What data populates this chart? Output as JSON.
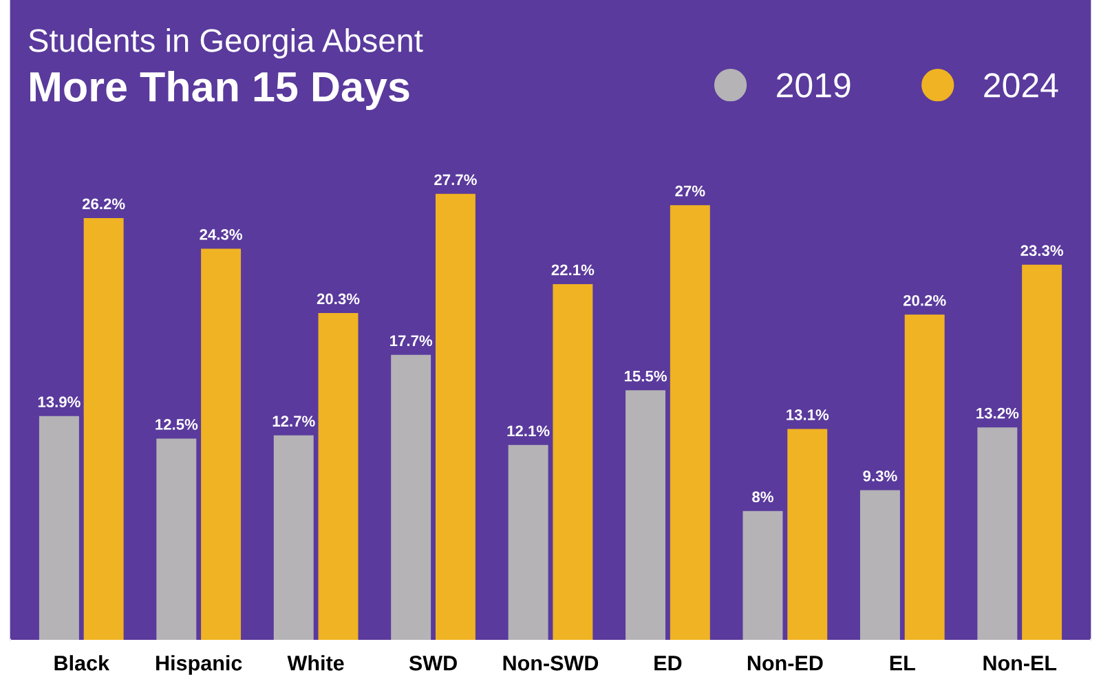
{
  "chart_data": {
    "type": "bar",
    "title": "Students in Georgia Absent",
    "subtitle": "More Than 15 Days",
    "categories": [
      "Black",
      "Hispanic",
      "White",
      "SWD",
      "Non-SWD",
      "ED",
      "Non-ED",
      "EL",
      "Non-EL"
    ],
    "series": [
      {
        "name": "2019",
        "color": "#b5b3b6",
        "values": [
          13.9,
          12.5,
          12.7,
          17.7,
          12.1,
          15.5,
          8,
          9.3,
          13.2
        ],
        "value_labels": [
          "13.9%",
          "12.5%",
          "12.7%",
          "17.7%",
          "12.1%",
          "15.5%",
          "8%",
          "9.3%",
          "13.2%"
        ]
      },
      {
        "name": "2024",
        "color": "#f0b323",
        "values": [
          26.2,
          24.3,
          20.3,
          27.7,
          22.1,
          27,
          13.1,
          20.2,
          23.3
        ],
        "value_labels": [
          "26.2%",
          "24.3%",
          "20.3%",
          "27.7%",
          "22.1%",
          "27%",
          "13.1%",
          "20.2%",
          "23.3%"
        ]
      }
    ],
    "legend": "top right",
    "grid": false
  }
}
